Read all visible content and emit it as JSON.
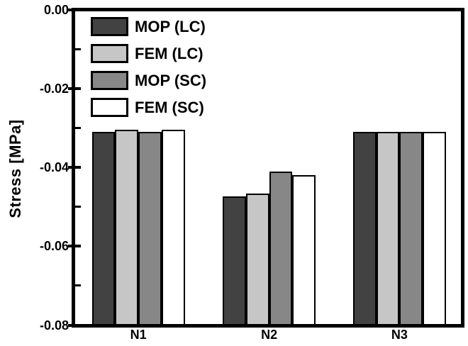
{
  "chart_data": {
    "type": "bar",
    "title": "",
    "xlabel": "",
    "ylabel": "Stress [MPa]",
    "categories": [
      "N1",
      "N2",
      "N3"
    ],
    "series": [
      {
        "name": "MOP (LC)",
        "color": "#424242",
        "values": [
          -0.031,
          -0.0473,
          -0.031
        ]
      },
      {
        "name": "FEM (LC)",
        "color": "#c6c6c6",
        "values": [
          -0.0305,
          -0.0467,
          -0.031
        ]
      },
      {
        "name": "MOP (SC)",
        "color": "#878787",
        "values": [
          -0.031,
          -0.041,
          -0.031
        ]
      },
      {
        "name": "FEM (SC)",
        "color": "#ffffff",
        "values": [
          -0.0305,
          -0.042,
          -0.031
        ]
      }
    ],
    "ylim": [
      -0.08,
      0.0
    ],
    "yticks": [
      0.0,
      -0.02,
      -0.04,
      -0.06,
      -0.08
    ],
    "ytick_labels": [
      "0.00",
      "-0.02",
      "-0.04",
      "-0.06",
      "-0.08"
    ],
    "minor_yticks": [
      -0.01,
      -0.03,
      -0.05,
      -0.07
    ],
    "grid": false,
    "legend_position": "upper-left-inside",
    "bar_edge_color": "#000000",
    "background_color": "#ffffff"
  }
}
